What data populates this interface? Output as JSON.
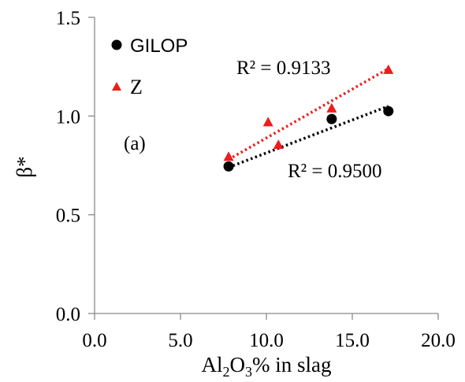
{
  "chart_data": {
    "type": "scatter",
    "xlabel": {
      "prefix": "Al",
      "sub1": "2",
      "mid": "O",
      "sub2": "3",
      "suffix": "% in slag"
    },
    "ylabel": "β*",
    "xlim": [
      0,
      20
    ],
    "ylim": [
      0,
      1.5
    ],
    "x_ticks": [
      "0.0",
      "5.0",
      "10.0",
      "15.0",
      "20.0"
    ],
    "y_ticks": [
      "0.0",
      "0.5",
      "1.0",
      "1.5"
    ],
    "x_tick_values": [
      0,
      5,
      10,
      15,
      20
    ],
    "y_tick_values": [
      0,
      0.5,
      1.0,
      1.5
    ],
    "grid": false,
    "legend_position": "top-left",
    "series": [
      {
        "name": "GILOP",
        "marker": "circle",
        "color": "#000000",
        "x": [
          7.8,
          13.8,
          17.1
        ],
        "y": [
          0.745,
          0.985,
          1.025
        ],
        "trendline": {
          "x": [
            7.8,
            17.1
          ],
          "y": [
            0.74,
            1.05
          ]
        }
      },
      {
        "name": "Z",
        "marker": "triangle",
        "color": "#ee1c1c",
        "x": [
          7.8,
          10.1,
          10.7,
          13.8,
          17.1
        ],
        "y": [
          0.795,
          0.97,
          0.855,
          1.04,
          1.235
        ],
        "trendline": {
          "x": [
            7.8,
            17.1
          ],
          "y": [
            0.78,
            1.24
          ]
        }
      }
    ],
    "annotations": [
      {
        "text": "R² = 0.9133",
        "series": "Z"
      },
      {
        "text": "R² = 0.9500",
        "series": "GILOP"
      },
      {
        "text": "(a)"
      }
    ]
  }
}
